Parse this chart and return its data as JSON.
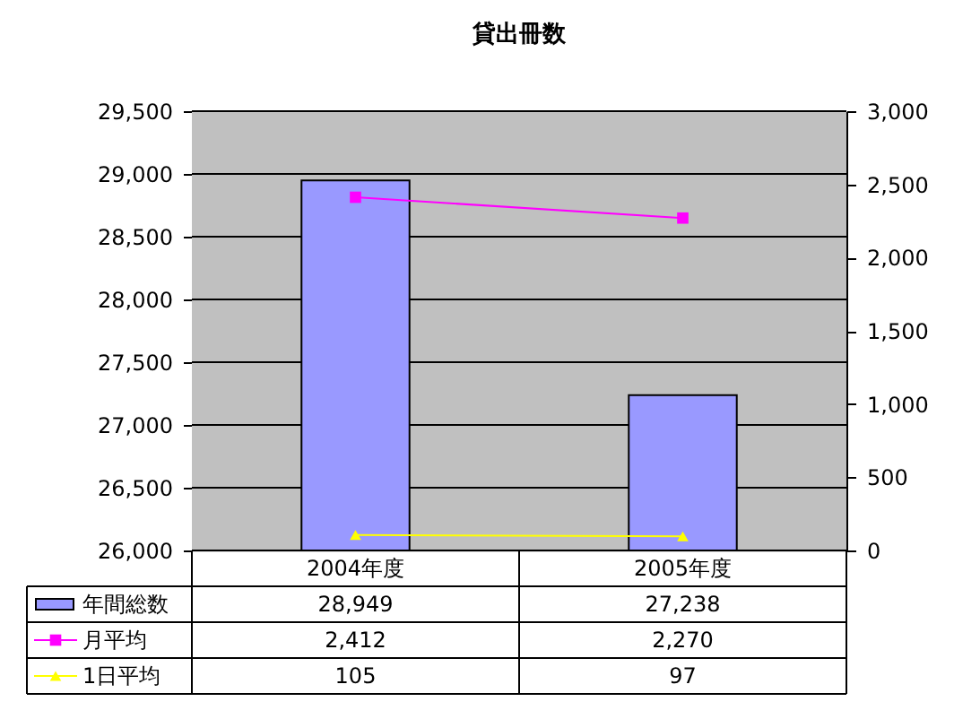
{
  "chart_data": {
    "type": "bar",
    "title": "貸出冊数",
    "categories": [
      "2004年度",
      "2005年度"
    ],
    "series": [
      {
        "name": "年間総数",
        "type": "bar",
        "color": "#9999ff",
        "values": [
          28949,
          27238
        ],
        "value_labels": [
          "28,949",
          "27,238"
        ]
      },
      {
        "name": "月平均",
        "type": "line",
        "axis": "y2",
        "marker": "square",
        "color": "#ff00ff",
        "values": [
          2412,
          2270
        ],
        "value_labels": [
          "2,412",
          "2,270"
        ]
      },
      {
        "name": "1日平均",
        "type": "line",
        "axis": "y2",
        "marker": "triangle",
        "color": "#ffff00",
        "values": [
          105,
          97
        ],
        "value_labels": [
          "105",
          "97"
        ]
      }
    ],
    "ylim": [
      26000,
      29500
    ],
    "yticks": [
      {
        "value": 26000,
        "label": "26,000"
      },
      {
        "value": 26500,
        "label": "26,500"
      },
      {
        "value": 27000,
        "label": "27,000"
      },
      {
        "value": 27500,
        "label": "27,500"
      },
      {
        "value": 28000,
        "label": "28,000"
      },
      {
        "value": 28500,
        "label": "28,500"
      },
      {
        "value": 29000,
        "label": "29,000"
      },
      {
        "value": 29500,
        "label": "29,500"
      }
    ],
    "y2lim": [
      0,
      3000
    ],
    "y2ticks": [
      0,
      {
        "value": 500,
        "label": "500"
      },
      {
        "value": 1000,
        "label": "1,000"
      },
      {
        "value": 1500,
        "label": "1,500"
      },
      {
        "value": 2000,
        "label": "2,000"
      },
      {
        "value": 2500,
        "label": "2,500"
      },
      {
        "value": 3000,
        "label": "3,000"
      }
    ],
    "grid": "y",
    "legend": "bottom",
    "data_labels": true
  }
}
